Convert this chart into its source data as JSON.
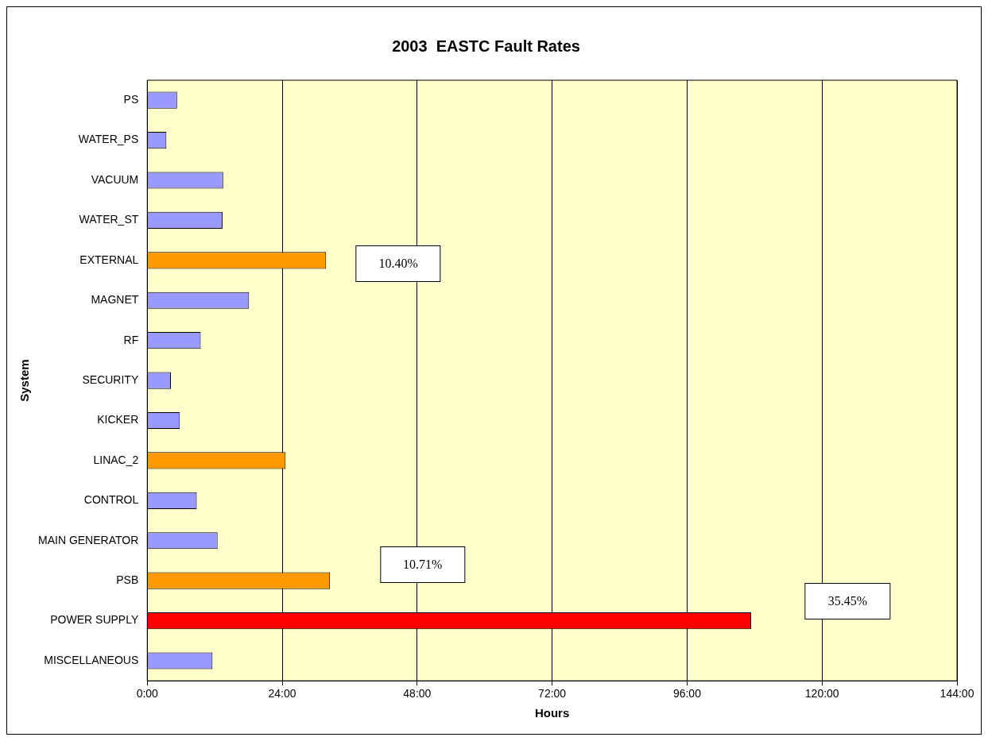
{
  "chart_data": {
    "type": "bar",
    "orientation": "horizontal",
    "title": "2003  EASTC Fault Rates",
    "xlabel": "Hours",
    "ylabel": "System",
    "categories": [
      "PS",
      "WATER_PS",
      "VACUUM",
      "WATER_ST",
      "EXTERNAL",
      "MAGNET",
      "RF",
      "SECURITY",
      "KICKER",
      "LINAC_2",
      "CONTROL",
      "MAIN GENERATOR",
      "PSB",
      "POWER SUPPLY",
      "MISCELLANEOUS"
    ],
    "values": [
      5.3,
      3.4,
      13.5,
      13.4,
      31.8,
      18.1,
      9.5,
      4.2,
      5.8,
      24.6,
      8.8,
      12.5,
      32.5,
      107.4,
      11.6
    ],
    "colors": [
      "#9999ff",
      "#9999ff",
      "#9999ff",
      "#9999ff",
      "#ff9900",
      "#9999ff",
      "#9999ff",
      "#9999ff",
      "#9999ff",
      "#ff9900",
      "#9999ff",
      "#9999ff",
      "#ff9900",
      "#ff0000",
      "#9999ff"
    ],
    "xlim": [
      0,
      144
    ],
    "xticks": [
      {
        "value": 0,
        "label": "0:00"
      },
      {
        "value": 24,
        "label": "24:00"
      },
      {
        "value": 48,
        "label": "48:00"
      },
      {
        "value": 72,
        "label": "72:00"
      },
      {
        "value": 96,
        "label": "96:00"
      },
      {
        "value": 120,
        "label": "120:00"
      },
      {
        "value": 144,
        "label": "144:00"
      }
    ],
    "grid": "x",
    "legend": false,
    "annotations": [
      "10.40%",
      "10.71%",
      "35.45%"
    ]
  }
}
